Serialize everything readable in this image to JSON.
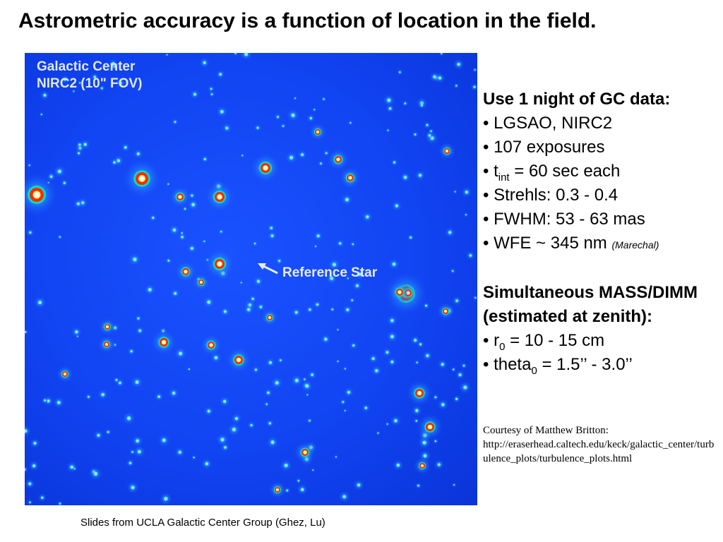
{
  "slide": {
    "title": "Astrometric accuracy is a function of location in the field.",
    "footer": "Slides from UCLA Galactic Center Group (Ghez, Lu)"
  },
  "image": {
    "title_line1": "Galactic Center",
    "title_line2": "NIRC2 (10\" FOV)",
    "reference_label": "Reference Star",
    "colors": {
      "background": "#1144f2",
      "star_core": "#ffffff",
      "star_ring": "#ff2a00",
      "star_halo": "#00e0c0"
    }
  },
  "info": {
    "heading1": "Use 1 night of GC data:",
    "bullet_lgsao": "• LGSAO, NIRC2",
    "bullet_exposures": "• 107 exposures",
    "bullet_tint_prefix": "• t",
    "bullet_tint_sub": "int",
    "bullet_tint_suffix": " = 60 sec each",
    "bullet_strehls": "• Strehls: 0.3 - 0.4",
    "bullet_fwhm": "• FWHM: 53 - 63 mas",
    "bullet_wfe": "• WFE ~ 345 nm ",
    "bullet_wfe_note": "(Marechal)",
    "heading2": "Simultaneous MASS/DIMM (estimated at zenith):",
    "bullet_r0_prefix": "• r",
    "bullet_r0_sub": "0",
    "bullet_r0_suffix": " = 10 - 15 cm",
    "bullet_theta_prefix": "• theta",
    "bullet_theta_sub": "0",
    "bullet_theta_suffix": " = 1.5’’ - 3.0’’"
  },
  "credit": {
    "line1": "Courtesy of Matthew Britton:",
    "url": "http://eraserhead.caltech.edu/keck/galactic_center/turbulence_plots/turbulence_plots.html"
  }
}
